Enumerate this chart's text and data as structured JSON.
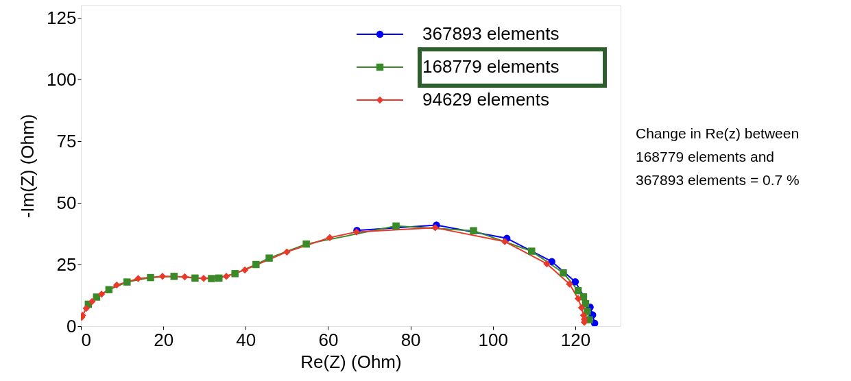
{
  "chart_data": {
    "type": "line",
    "xlabel": "Re(Z) (Ohm)",
    "ylabel": "-Im(Z) (Ohm)",
    "xlim": [
      0,
      131
    ],
    "ylim": [
      0,
      130
    ],
    "xticks": [
      0,
      20,
      40,
      60,
      80,
      100,
      120
    ],
    "yticks": [
      0,
      25,
      50,
      75,
      100,
      125
    ],
    "grid": false,
    "legend": "top right",
    "line_style": "solid",
    "annotations": [
      "Change in Re(z) between\n168779 elements and\n367893 elements = 0.7 %"
    ],
    "series": [
      {
        "name": "367893 elements",
        "color": "#0000ff",
        "marker": "circle",
        "x": [
          67.0,
          86.3,
          103.4,
          114.3,
          120.0,
          123.6,
          124.2,
          124.7
        ],
        "values": [
          38.8,
          41.0,
          35.6,
          26.2,
          18.0,
          7.7,
          4.6,
          1.2
        ]
      },
      {
        "name": "168779 elements",
        "color": "#3a8a2a",
        "marker": "square",
        "x": [
          1.8,
          3.8,
          6.8,
          11.2,
          16.9,
          22.6,
          27.7,
          31.7,
          33.5,
          37.4,
          42.5,
          45.7,
          54.7,
          76.5,
          95.3,
          109.4,
          117.1,
          120.7,
          122.0,
          122.5,
          122.9,
          123.4
        ],
        "values": [
          8.9,
          11.8,
          14.8,
          17.9,
          19.7,
          20.2,
          19.5,
          19.3,
          19.5,
          21.3,
          25.0,
          27.6,
          33.3,
          40.6,
          38.7,
          30.4,
          21.6,
          14.4,
          11.9,
          9.1,
          6.0,
          2.6
        ]
      },
      {
        "name": "94629 elements",
        "color": "#e8392a",
        "marker": "diamond",
        "x": [
          0.2,
          0.4,
          1.3,
          2.7,
          5.0,
          8.7,
          13.9,
          19.8,
          25.2,
          29.8,
          35.3,
          39.8,
          50.0,
          60.4,
          66.9,
          86.0,
          102.9,
          113.1,
          118.6,
          120.7,
          121.5,
          122.0,
          122.2,
          122.2
        ],
        "values": [
          3.6,
          4.4,
          7.2,
          10.0,
          13.0,
          16.7,
          19.3,
          20.2,
          20.0,
          19.4,
          20.2,
          22.8,
          30.1,
          35.9,
          38.2,
          39.9,
          34.3,
          25.3,
          17.1,
          11.2,
          7.5,
          4.4,
          2.8,
          1.6
        ]
      }
    ]
  }
}
